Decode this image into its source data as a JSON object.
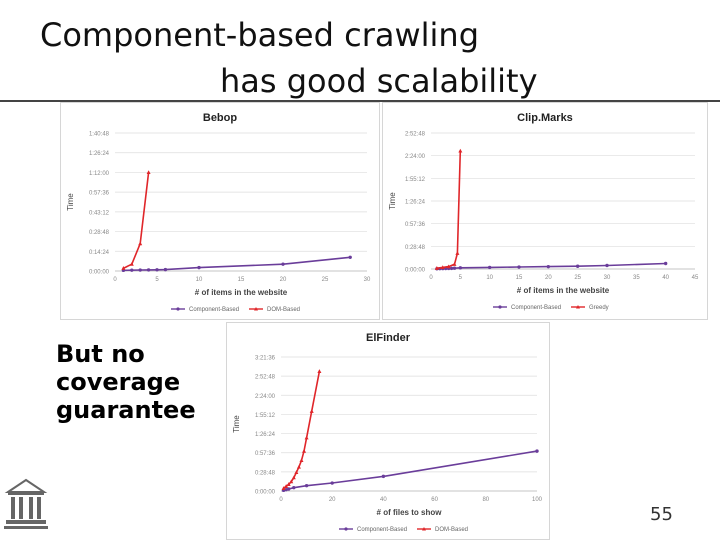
{
  "slide": {
    "title_line1": "Component-based crawling",
    "title_line2": "has good scalability",
    "caption_lines": [
      "But no",
      "coverage",
      "guarantee"
    ],
    "page_number": "55",
    "logo_icon": "university-building-icon"
  },
  "colors": {
    "component": "#6a3d9a",
    "dom": "#e0262a",
    "grid": "#dddddd",
    "axis_text": "#888888",
    "title_text": "#222222"
  },
  "chart_data": [
    {
      "id": "bebop",
      "type": "line",
      "title": "Bebop",
      "xlabel": "# of items in the website",
      "ylabel": "Time",
      "xticks": [
        0,
        5,
        10,
        15,
        20,
        25,
        30
      ],
      "xlim": [
        0,
        30
      ],
      "yticks": [
        "0:00:00",
        "0:14:24",
        "0:28:48",
        "0:43:12",
        "0:57:36",
        "1:12:00",
        "1:26:24",
        "1:40:48"
      ],
      "ylim_minutes": [
        0,
        100.8
      ],
      "series": [
        {
          "name": "Component-Based",
          "color": "#6a3d9a",
          "x": [
            1,
            2,
            3,
            4,
            5,
            6,
            10,
            20,
            28
          ],
          "y": [
            0.5,
            0.6,
            0.7,
            0.8,
            0.9,
            1.0,
            2.5,
            5.0,
            10.0
          ]
        },
        {
          "name": "DOM-Based",
          "color": "#e0262a",
          "x": [
            1,
            2,
            3,
            4
          ],
          "y": [
            2,
            5,
            20,
            72
          ]
        }
      ]
    },
    {
      "id": "clipmarks",
      "type": "line",
      "title": "Clip.Marks",
      "xlabel": "# of items in the website",
      "ylabel": "Time",
      "xticks": [
        0,
        5,
        10,
        15,
        20,
        25,
        30,
        35,
        40,
        45
      ],
      "xlim": [
        0,
        45
      ],
      "yticks": [
        "0:00:00",
        "0:28:48",
        "0:57:36",
        "1:26:24",
        "1:55:12",
        "2:24:00",
        "2:52:48"
      ],
      "ylim_minutes": [
        0,
        172.8
      ],
      "series": [
        {
          "name": "Component-Based",
          "color": "#6a3d9a",
          "x": [
            1,
            1.5,
            2,
            2.5,
            3,
            3.5,
            4,
            5,
            10,
            15,
            20,
            25,
            30,
            40
          ],
          "y": [
            0.3,
            0.4,
            0.5,
            0.6,
            0.7,
            0.8,
            1.0,
            1.5,
            2.0,
            2.5,
            3.0,
            3.5,
            4.5,
            7.0
          ]
        },
        {
          "name": "Greedy",
          "color": "#e0262a",
          "x": [
            1,
            2,
            3,
            4,
            4.5,
            5
          ],
          "y": [
            1,
            2,
            3,
            6,
            20,
            150
          ]
        }
      ]
    },
    {
      "id": "elfinder",
      "type": "line",
      "title": "ElFinder",
      "xlabel": "# of files to show",
      "ylabel": "Time",
      "xticks": [
        0,
        20,
        40,
        60,
        80,
        100
      ],
      "xlim": [
        0,
        100
      ],
      "yticks": [
        "0:00:00",
        "0:28:48",
        "0:57:36",
        "1:26:24",
        "1:55:12",
        "2:24:00",
        "2:52:48",
        "3:21:36"
      ],
      "ylim_minutes": [
        0,
        201.6
      ],
      "series": [
        {
          "name": "Component-Based",
          "color": "#6a3d9a",
          "x": [
            1,
            2,
            3,
            5,
            10,
            20,
            40,
            100
          ],
          "y": [
            1,
            2,
            3,
            5,
            8,
            12,
            22,
            60
          ]
        },
        {
          "name": "DOM-Based",
          "color": "#e0262a",
          "x": [
            1,
            2,
            3,
            4,
            5,
            6,
            7,
            8,
            9,
            10,
            12,
            15
          ],
          "y": [
            4,
            7,
            10,
            14,
            20,
            28,
            36,
            46,
            60,
            80,
            120,
            180
          ]
        }
      ]
    }
  ]
}
